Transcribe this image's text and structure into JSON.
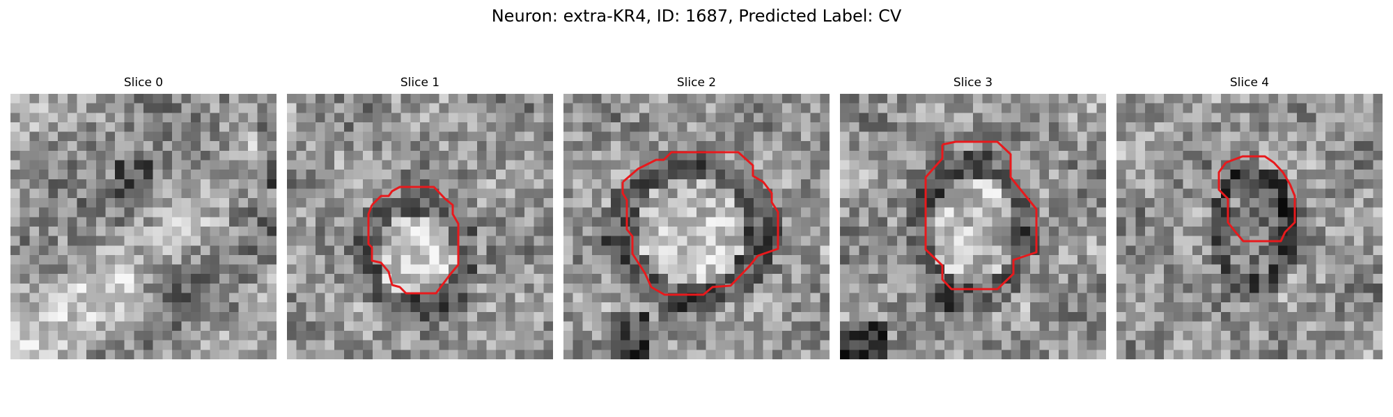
{
  "figure": {
    "title": "Neuron: extra-KR4, ID: 1687, Predicted Label: CV",
    "contour_color": "#e8191c",
    "colormap": "grayscale"
  },
  "panels": [
    {
      "title": "Slice 0",
      "has_contour": false,
      "roi_pixel_size": [
        0,
        0
      ],
      "seed": 11
    },
    {
      "title": "Slice 1",
      "has_contour": true,
      "roi_pixel_size": [
        10,
        10
      ],
      "seed": 23
    },
    {
      "title": "Slice 2",
      "has_contour": true,
      "roi_pixel_size": [
        14,
        13
      ],
      "seed": 37
    },
    {
      "title": "Slice 3",
      "has_contour": true,
      "roi_pixel_size": [
        10,
        13
      ],
      "seed": 51
    },
    {
      "title": "Slice 4",
      "has_contour": true,
      "roi_pixel_size": [
        7,
        10
      ],
      "seed": 67
    }
  ]
}
